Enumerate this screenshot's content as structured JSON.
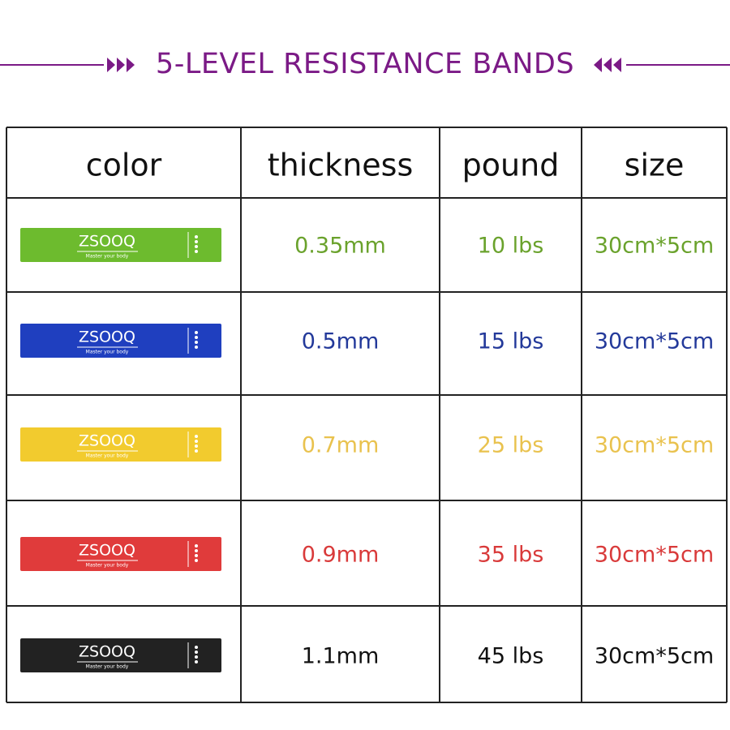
{
  "header": {
    "title": "5-LEVEL RESISTANCE BANDS"
  },
  "table": {
    "columns": [
      "color",
      "thickness",
      "pound",
      "size"
    ],
    "rows": [
      {
        "brand": "ZSOOQ",
        "slogan": "Master your body",
        "band_color": "#6dbb2e",
        "text_color": "#6aa22c",
        "thickness": "0.35mm",
        "pound": "10 lbs",
        "size": "30cm*5cm"
      },
      {
        "brand": "ZSOOQ",
        "slogan": "Master your body",
        "band_color": "#1f3fbf",
        "text_color": "#23399a",
        "thickness": "0.5mm",
        "pound": "15 lbs",
        "size": "30cm*5cm"
      },
      {
        "brand": "ZSOOQ",
        "slogan": "Master your body",
        "band_color": "#f2cb2e",
        "text_color": "#e9c24e",
        "thickness": "0.7mm",
        "pound": "25 lbs",
        "size": "30cm*5cm"
      },
      {
        "brand": "ZSOOQ",
        "slogan": "Master your body",
        "band_color": "#e03b3b",
        "text_color": "#d93a3a",
        "thickness": "0.9mm",
        "pound": "35 lbs",
        "size": "30cm*5cm"
      },
      {
        "brand": "ZSOOQ",
        "slogan": "Master your body",
        "band_color": "#222222",
        "text_color": "#111111",
        "thickness": "1.1mm",
        "pound": "45 lbs",
        "size": "30cm*5cm"
      }
    ]
  }
}
